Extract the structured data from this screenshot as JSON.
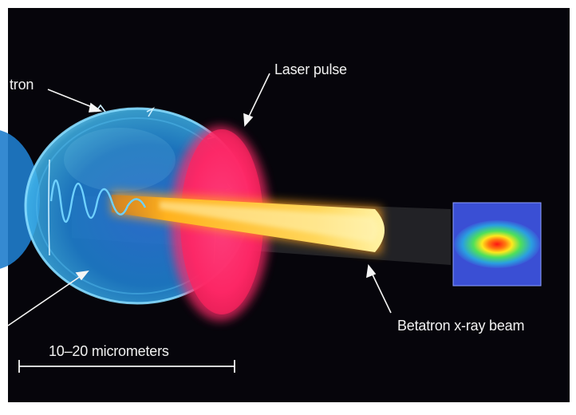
{
  "labels": {
    "electron": "tron",
    "laser_pulse": "Laser pulse",
    "betatron_beam": "Betatron x-ray beam",
    "scale": "10–20 micrometers"
  },
  "colors": {
    "background": "#06050b",
    "bubble": "#1c84d6",
    "bubble_edge": "#5cc2f2",
    "laser": "#ff2a6a",
    "beam_core": "#fff6b0",
    "beam_outer": "#ff9a12",
    "text": "#f2f2f2"
  }
}
